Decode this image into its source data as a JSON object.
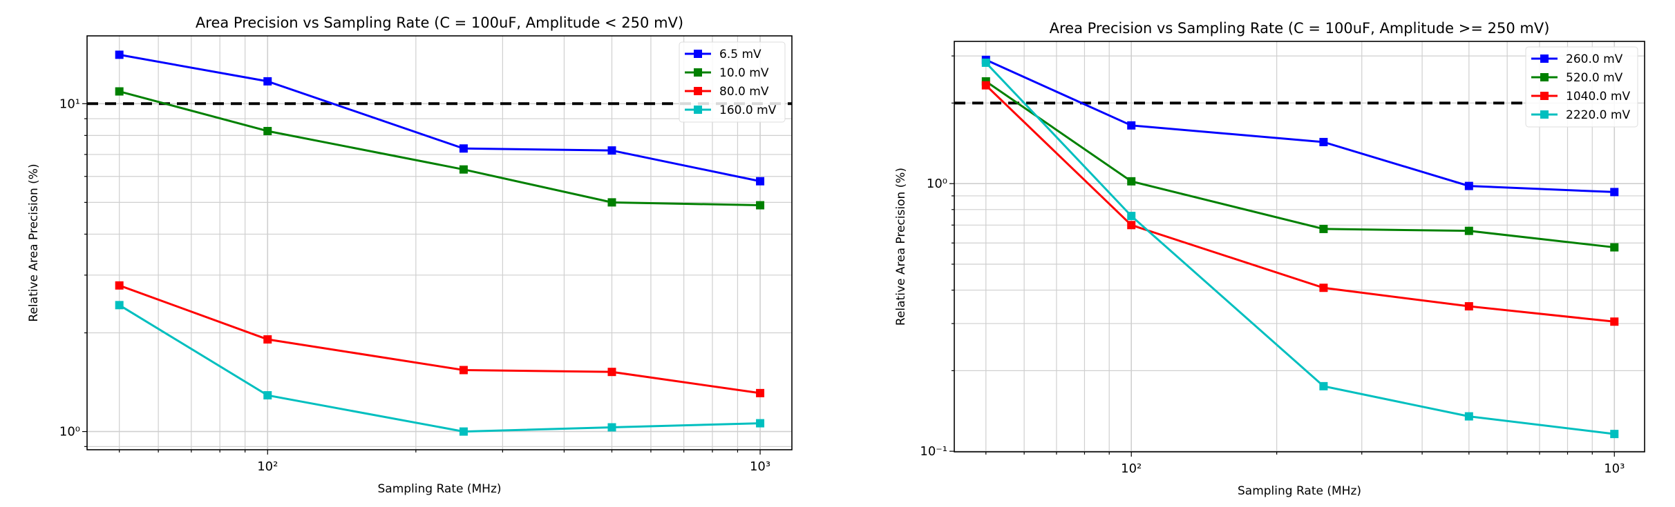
{
  "chart_data": [
    {
      "type": "line",
      "title": "Area Precision vs Sampling Rate (C = 100uF, Amplitude < 250 mV)",
      "xlabel": "Sampling Rate (MHz)",
      "ylabel": "Relative Area Precision (%)",
      "xscale": "log",
      "yscale": "log",
      "xlim": [
        43,
        1160
      ],
      "ylim": [
        0.88,
        16.1
      ],
      "xticks": [
        {
          "value": 100,
          "label": "10²"
        },
        {
          "value": 1000,
          "label": "10³"
        }
      ],
      "yticks": [
        {
          "value": 1,
          "label": "10⁰"
        },
        {
          "value": 10,
          "label": "10¹"
        }
      ],
      "grid": "both",
      "threshold": {
        "value": 10,
        "style": "dashed",
        "color": "#000000"
      },
      "legend_position": "top-right",
      "x": [
        50,
        100,
        250,
        500,
        1000
      ],
      "series": [
        {
          "name": "6.5 mV",
          "color": "#0000ff",
          "values": [
            14.1,
            11.7,
            7.3,
            7.2,
            5.8
          ]
        },
        {
          "name": "10.0 mV",
          "color": "#008000",
          "values": [
            10.9,
            8.25,
            6.3,
            5.0,
            4.9
          ]
        },
        {
          "name": "80.0 mV",
          "color": "#ff0000",
          "values": [
            2.79,
            1.91,
            1.54,
            1.52,
            1.31
          ]
        },
        {
          "name": "160.0 mV",
          "color": "#00bfbf",
          "values": [
            2.43,
            1.29,
            1.0,
            1.03,
            1.06
          ]
        }
      ]
    },
    {
      "type": "line",
      "title": "Area Precision vs Sampling Rate (C = 100uF, Amplitude >= 250 mV)",
      "xlabel": "Sampling Rate (MHz)",
      "ylabel": "Relative Area Precision (%)",
      "xscale": "log",
      "yscale": "log",
      "xlim": [
        43,
        1155
      ],
      "ylim": [
        0.0995,
        3.4
      ],
      "xticks": [
        {
          "value": 100,
          "label": "10²"
        },
        {
          "value": 1000,
          "label": "10³"
        }
      ],
      "yticks": [
        {
          "value": 0.1,
          "label": "10⁻¹"
        },
        {
          "value": 1,
          "label": "10⁰"
        }
      ],
      "grid": "both",
      "threshold": {
        "value": 2.0,
        "style": "dashed",
        "color": "#000000"
      },
      "legend_position": "top-right",
      "x": [
        50,
        100,
        250,
        500,
        1000
      ],
      "series": [
        {
          "name": "260.0 mV",
          "color": "#0000ff",
          "values": [
            2.9,
            1.65,
            1.43,
            0.98,
            0.93
          ]
        },
        {
          "name": "520.0 mV",
          "color": "#008000",
          "values": [
            2.41,
            1.02,
            0.677,
            0.666,
            0.578
          ]
        },
        {
          "name": "1040.0 mV",
          "color": "#ff0000",
          "values": [
            2.33,
            0.7,
            0.408,
            0.348,
            0.305
          ]
        },
        {
          "name": "2220.0 mV",
          "color": "#00bfbf",
          "values": [
            2.83,
            0.757,
            0.175,
            0.135,
            0.116
          ]
        }
      ]
    }
  ]
}
